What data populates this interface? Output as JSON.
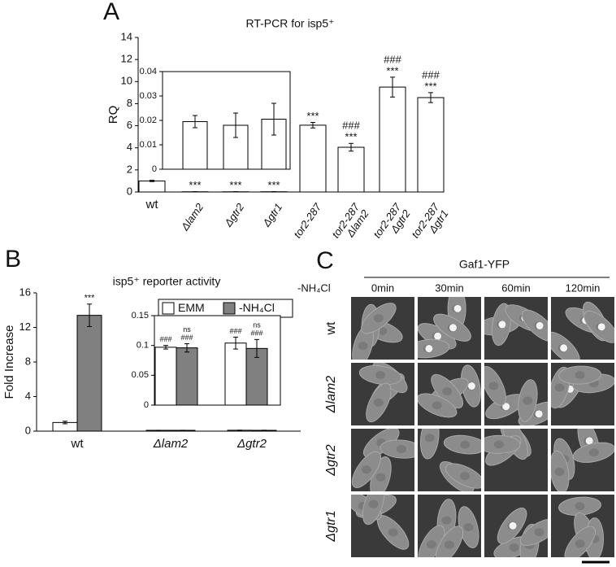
{
  "panel_labels": [
    "A",
    "B",
    "C"
  ],
  "chart_data": [
    {
      "type": "bar",
      "title": "RT-PCR for isp5⁺",
      "y_label": "RQ",
      "categories": [
        [
          "wt"
        ],
        [
          "Δlam2"
        ],
        [
          "Δgtr2"
        ],
        [
          "Δgtr1"
        ],
        [
          "tor2-287"
        ],
        [
          "tor2-287",
          "Δlam2"
        ],
        [
          "tor2-287",
          "Δgtr2"
        ],
        [
          "tor2-287",
          "Δgtr1"
        ]
      ],
      "values": [
        1.0,
        0.0195,
        0.018,
        0.0205,
        6.05,
        4.05,
        9.5,
        8.55
      ],
      "errors": [
        0.06,
        0.0025,
        0.005,
        0.0065,
        0.25,
        0.35,
        0.9,
        0.45
      ],
      "annotations": [
        null,
        [
          "***"
        ],
        [
          "***"
        ],
        [
          "***"
        ],
        [
          "***"
        ],
        [
          "###",
          "***"
        ],
        [
          "###",
          "***"
        ],
        [
          "###",
          "***"
        ]
      ],
      "color": "#ffffff",
      "ylim": [
        0,
        14
      ],
      "yticks": [
        0,
        2,
        4,
        6,
        8,
        10,
        12,
        14
      ],
      "grid": false
    },
    {
      "type": "bar",
      "values": [
        0.0195,
        0.018,
        0.0205
      ],
      "errors": [
        0.0025,
        0.005,
        0.0065
      ],
      "color": "#ffffff",
      "ylim": [
        0,
        0.04
      ],
      "yticks": [
        0,
        0.01,
        0.02,
        0.03,
        0.04
      ],
      "grid": false
    },
    {
      "type": "bar",
      "title": "isp5⁺ reporter activity",
      "y_label": "Fold  Increase",
      "categories": [
        [
          "wt"
        ],
        [
          "Δlam2"
        ],
        [
          "Δgtr2"
        ]
      ],
      "series": [
        {
          "name": "EMM",
          "color": "#ffffff",
          "values": [
            1.0,
            0.097,
            0.104
          ],
          "errors": [
            0.15,
            0.003,
            0.01
          ],
          "annotations": [
            null,
            null,
            null
          ]
        },
        {
          "name": "-NH₄Cl",
          "color": "#808080",
          "values": [
            13.4,
            0.096,
            0.095
          ],
          "errors": [
            1.3,
            0.007,
            0.015
          ],
          "annotations": [
            [
              "***"
            ],
            null,
            null
          ]
        }
      ],
      "legend": "top-right",
      "ylim": [
        0,
        16
      ],
      "yticks": [
        0,
        4,
        8,
        12,
        16
      ],
      "grid": false
    },
    {
      "type": "bar",
      "series": [
        {
          "name": "EMM",
          "color": "#ffffff",
          "values": [
            0.097,
            0.104
          ],
          "errors": [
            0.003,
            0.01
          ],
          "annotations": [
            [
              "###"
            ],
            [
              "###"
            ]
          ]
        },
        {
          "name": "-NH₄Cl",
          "color": "#808080",
          "values": [
            0.096,
            0.095
          ],
          "errors": [
            0.007,
            0.015
          ],
          "annotations": [
            [
              "ns",
              "###"
            ],
            [
              "ns",
              "###"
            ]
          ]
        }
      ],
      "ylim": [
        0,
        0.15
      ],
      "yticks": [
        0,
        0.05,
        0.1,
        0.15
      ],
      "grid": false
    }
  ],
  "micrograph": {
    "title": "Gaf1-YFP",
    "condition": "-NH₄Cl",
    "columns": [
      "0min",
      "30min",
      "60min",
      "120min"
    ],
    "rows": [
      "wt",
      "Δlam2",
      "Δgtr2",
      "Δgtr1"
    ]
  }
}
